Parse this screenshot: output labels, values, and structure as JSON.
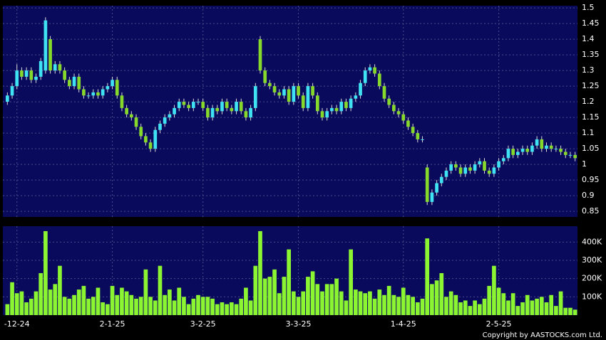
{
  "chart_data": {
    "type": "candlestick",
    "background": "#000000",
    "panel_color": "#0a0a5c",
    "grid_color": "#4a4a8a",
    "up_color": "#3fe2f2",
    "down_color": "#86d92a",
    "volume_color": "#8cf532",
    "grid": true,
    "categories": [
      null,
      null,
      "-12-24",
      null,
      null,
      null,
      null,
      null,
      null,
      null,
      null,
      null,
      null,
      null,
      null,
      null,
      null,
      null,
      null,
      null,
      null,
      null,
      "2-1-25",
      null,
      null,
      null,
      null,
      null,
      null,
      null,
      null,
      null,
      null,
      null,
      null,
      null,
      null,
      null,
      null,
      null,
      null,
      "3-2-25",
      null,
      null,
      null,
      null,
      null,
      null,
      null,
      null,
      null,
      null,
      null,
      null,
      null,
      null,
      null,
      null,
      null,
      null,
      null,
      "3-3-25",
      null,
      null,
      null,
      null,
      null,
      null,
      null,
      null,
      null,
      null,
      null,
      null,
      null,
      null,
      null,
      null,
      null,
      null,
      null,
      null,
      null,
      "1-4-25",
      null,
      null,
      null,
      null,
      null,
      null,
      null,
      null,
      null,
      null,
      null,
      null,
      null,
      null,
      null,
      null,
      null,
      null,
      null,
      "2-5-25",
      null,
      null,
      null,
      null,
      null,
      null,
      null,
      null,
      null,
      null,
      null,
      null,
      null,
      null,
      null,
      null
    ],
    "open": [
      1.2,
      1.22,
      1.25,
      1.3,
      1.28,
      1.3,
      1.27,
      1.28,
      1.3,
      1.4,
      1.3,
      1.32,
      1.3,
      1.27,
      1.25,
      1.28,
      1.24,
      1.22,
      1.22,
      1.23,
      1.22,
      1.24,
      1.25,
      1.27,
      1.22,
      1.18,
      1.16,
      1.15,
      1.12,
      1.09,
      1.07,
      1.05,
      1.11,
      1.13,
      1.15,
      1.16,
      1.18,
      1.2,
      1.19,
      1.18,
      1.2,
      1.2,
      1.18,
      1.15,
      1.18,
      1.17,
      1.2,
      1.18,
      1.17,
      1.2,
      1.17,
      1.15,
      1.18,
      1.4,
      1.3,
      1.26,
      1.25,
      1.23,
      1.22,
      1.24,
      1.2,
      1.25,
      1.22,
      1.18,
      1.25,
      1.22,
      1.17,
      1.15,
      1.17,
      1.18,
      1.17,
      1.2,
      1.18,
      1.21,
      1.22,
      1.26,
      1.3,
      1.31,
      1.29,
      1.25,
      1.21,
      1.19,
      1.17,
      1.16,
      1.14,
      1.12,
      1.1,
      1.08,
      0.99,
      0.88,
      0.91,
      0.94,
      0.96,
      0.98,
      1.0,
      0.99,
      0.97,
      0.99,
      0.98,
      1.0,
      1.01,
      0.98,
      0.97,
      0.99,
      1.01,
      1.02,
      1.05,
      1.03,
      1.04,
      1.05,
      1.04,
      1.06,
      1.08,
      1.05,
      1.06,
      1.05,
      1.05,
      1.04,
      1.03,
      1.03
    ],
    "high": [
      1.23,
      1.26,
      1.32,
      1.31,
      1.31,
      1.31,
      1.29,
      1.34,
      1.47,
      1.41,
      1.33,
      1.33,
      1.31,
      1.28,
      1.29,
      1.29,
      1.25,
      1.23,
      1.24,
      1.24,
      1.25,
      1.26,
      1.28,
      1.28,
      1.23,
      1.19,
      1.17,
      1.16,
      1.13,
      1.1,
      1.08,
      1.12,
      1.14,
      1.16,
      1.17,
      1.19,
      1.21,
      1.21,
      1.2,
      1.21,
      1.21,
      1.21,
      1.19,
      1.19,
      1.19,
      1.21,
      1.21,
      1.19,
      1.21,
      1.21,
      1.18,
      1.19,
      1.26,
      1.41,
      1.31,
      1.27,
      1.26,
      1.24,
      1.25,
      1.25,
      1.26,
      1.26,
      1.23,
      1.26,
      1.26,
      1.23,
      1.18,
      1.18,
      1.19,
      1.19,
      1.21,
      1.21,
      1.22,
      1.23,
      1.27,
      1.31,
      1.32,
      1.32,
      1.3,
      1.26,
      1.22,
      1.2,
      1.18,
      1.17,
      1.15,
      1.13,
      1.11,
      1.09,
      1.0,
      0.92,
      0.95,
      0.97,
      0.99,
      1.01,
      1.01,
      1.0,
      1.0,
      1.0,
      1.01,
      1.02,
      1.02,
      0.99,
      1.0,
      1.02,
      1.03,
      1.06,
      1.06,
      1.05,
      1.06,
      1.06,
      1.07,
      1.09,
      1.09,
      1.07,
      1.07,
      1.06,
      1.06,
      1.05,
      1.04,
      1.04
    ],
    "low": [
      1.19,
      1.21,
      1.24,
      1.27,
      1.27,
      1.26,
      1.26,
      1.27,
      1.29,
      1.29,
      1.29,
      1.29,
      1.26,
      1.24,
      1.24,
      1.23,
      1.21,
      1.21,
      1.21,
      1.21,
      1.21,
      1.23,
      1.24,
      1.21,
      1.17,
      1.15,
      1.14,
      1.11,
      1.08,
      1.06,
      1.04,
      1.04,
      1.1,
      1.12,
      1.14,
      1.15,
      1.17,
      1.18,
      1.17,
      1.17,
      1.19,
      1.17,
      1.14,
      1.14,
      1.16,
      1.16,
      1.17,
      1.16,
      1.16,
      1.16,
      1.14,
      1.14,
      1.17,
      1.29,
      1.25,
      1.24,
      1.22,
      1.21,
      1.21,
      1.19,
      1.19,
      1.21,
      1.17,
      1.17,
      1.21,
      1.16,
      1.14,
      1.14,
      1.16,
      1.16,
      1.16,
      1.17,
      1.17,
      1.2,
      1.21,
      1.25,
      1.29,
      1.28,
      1.24,
      1.2,
      1.18,
      1.16,
      1.15,
      1.13,
      1.11,
      1.09,
      1.07,
      1.07,
      0.87,
      0.87,
      0.9,
      0.93,
      0.95,
      0.97,
      0.98,
      0.96,
      0.96,
      0.97,
      0.97,
      0.99,
      0.97,
      0.96,
      0.96,
      0.98,
      1.0,
      1.01,
      1.02,
      1.02,
      1.03,
      1.03,
      1.03,
      1.05,
      1.04,
      1.04,
      1.04,
      1.04,
      1.03,
      1.02,
      1.02,
      1.01
    ],
    "close": [
      1.22,
      1.25,
      1.3,
      1.28,
      1.3,
      1.27,
      1.28,
      1.33,
      1.46,
      1.3,
      1.32,
      1.3,
      1.27,
      1.25,
      1.28,
      1.24,
      1.22,
      1.22,
      1.23,
      1.22,
      1.24,
      1.25,
      1.27,
      1.22,
      1.18,
      1.16,
      1.15,
      1.12,
      1.09,
      1.07,
      1.05,
      1.11,
      1.13,
      1.15,
      1.16,
      1.18,
      1.2,
      1.19,
      1.18,
      1.2,
      1.2,
      1.18,
      1.15,
      1.18,
      1.17,
      1.2,
      1.18,
      1.17,
      1.2,
      1.17,
      1.15,
      1.18,
      1.25,
      1.3,
      1.26,
      1.25,
      1.23,
      1.22,
      1.24,
      1.2,
      1.25,
      1.22,
      1.18,
      1.25,
      1.22,
      1.17,
      1.15,
      1.17,
      1.18,
      1.17,
      1.2,
      1.18,
      1.21,
      1.22,
      1.26,
      1.3,
      1.31,
      1.29,
      1.25,
      1.21,
      1.19,
      1.17,
      1.16,
      1.14,
      1.12,
      1.1,
      1.08,
      1.08,
      0.88,
      0.91,
      0.94,
      0.96,
      0.98,
      1.0,
      0.99,
      0.97,
      0.99,
      0.98,
      1.0,
      1.01,
      0.98,
      0.97,
      0.99,
      1.01,
      1.02,
      1.05,
      1.03,
      1.04,
      1.05,
      1.04,
      1.06,
      1.08,
      1.05,
      1.06,
      1.05,
      1.05,
      1.04,
      1.03,
      1.03,
      1.02
    ],
    "volume": [
      60000,
      180000,
      120000,
      130000,
      70000,
      90000,
      130000,
      230000,
      460000,
      140000,
      170000,
      270000,
      100000,
      90000,
      110000,
      140000,
      160000,
      90000,
      100000,
      150000,
      70000,
      60000,
      160000,
      110000,
      150000,
      130000,
      110000,
      90000,
      100000,
      250000,
      100000,
      80000,
      270000,
      110000,
      140000,
      80000,
      150000,
      100000,
      60000,
      90000,
      110000,
      100000,
      100000,
      90000,
      60000,
      70000,
      60000,
      70000,
      60000,
      90000,
      150000,
      80000,
      270000,
      460000,
      200000,
      210000,
      250000,
      120000,
      210000,
      360000,
      130000,
      100000,
      130000,
      210000,
      240000,
      170000,
      130000,
      170000,
      170000,
      200000,
      130000,
      80000,
      360000,
      140000,
      130000,
      120000,
      130000,
      90000,
      140000,
      110000,
      160000,
      110000,
      100000,
      150000,
      110000,
      100000,
      70000,
      90000,
      420000,
      170000,
      190000,
      230000,
      100000,
      130000,
      110000,
      70000,
      80000,
      50000,
      80000,
      60000,
      90000,
      160000,
      270000,
      150000,
      120000,
      80000,
      120000,
      50000,
      70000,
      110000,
      80000,
      90000,
      100000,
      70000,
      110000,
      50000,
      130000,
      40000,
      40000,
      30000
    ],
    "ylim": [
      0.832,
      1.507
    ],
    "yticks": [
      0.85,
      0.9,
      0.95,
      1,
      1.05,
      1.1,
      1.15,
      1.2,
      1.25,
      1.3,
      1.35,
      1.4,
      1.45,
      1.5
    ],
    "volume_ylim": [
      0,
      487000
    ],
    "volume_yticks": [
      {
        "value": 100000,
        "label": "100K"
      },
      {
        "value": 200000,
        "label": "200K"
      },
      {
        "value": 300000,
        "label": "300K"
      },
      {
        "value": 400000,
        "label": "400K"
      }
    ],
    "copyright": "Copyright by AASTOCKS.com Ltd."
  }
}
